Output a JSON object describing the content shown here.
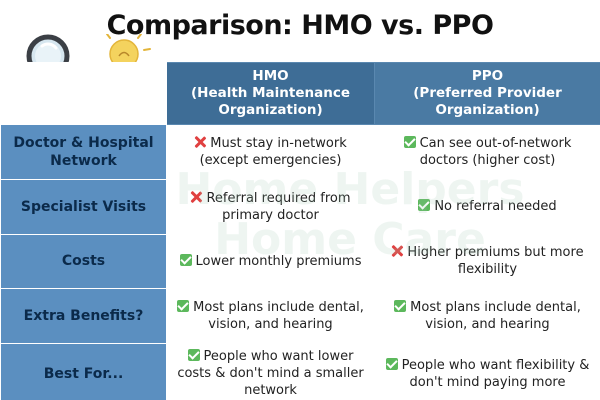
{
  "title": "Comparison: HMO vs. PPO",
  "icons": {
    "left": "magnifying-glass-icon",
    "right": "light-bulb-icon"
  },
  "colors": {
    "header_bg": "#3e6d96",
    "row_label_bg": "#5b8fc0",
    "check": "#5cb85c",
    "cross": "#e04040"
  },
  "columns": [
    {
      "lines": [
        "HMO",
        "(Health Maintenance",
        "Organization)"
      ]
    },
    {
      "lines": [
        "PPO",
        "(Preferred Provider",
        "Organization)"
      ]
    }
  ],
  "rows": [
    {
      "label_lines": [
        "Doctor & Hospital",
        "Network"
      ],
      "hmo": {
        "mark": "cross",
        "lines": [
          "Must stay in-network",
          "(except emergencies)"
        ]
      },
      "ppo": {
        "mark": "check",
        "lines": [
          "Can see out-of-network",
          "doctors (higher cost)"
        ]
      }
    },
    {
      "label_lines": [
        "Specialist Visits"
      ],
      "hmo": {
        "mark": "cross",
        "lines": [
          "Referral required from",
          "primary doctor"
        ]
      },
      "ppo": {
        "mark": "check",
        "lines": [
          "No referral needed"
        ]
      }
    },
    {
      "label_lines": [
        "Costs"
      ],
      "hmo": {
        "mark": "check",
        "lines": [
          "Lower monthly premiums"
        ]
      },
      "ppo": {
        "mark": "cross",
        "lines": [
          "Higher premiums but more",
          "flexibility"
        ]
      }
    },
    {
      "label_lines": [
        "Extra Benefits?"
      ],
      "hmo": {
        "mark": "check",
        "lines": [
          "Most plans include dental,",
          "vision, and hearing"
        ]
      },
      "ppo": {
        "mark": "check",
        "lines": [
          "Most plans include dental,",
          "vision, and hearing"
        ]
      }
    },
    {
      "label_lines": [
        "Best For..."
      ],
      "hmo": {
        "mark": "check",
        "lines": [
          "People who want lower",
          "costs & don't mind a smaller",
          "network"
        ]
      },
      "ppo": {
        "mark": "check",
        "lines": [
          "People who want flexibility &",
          "don't mind paying more"
        ]
      }
    }
  ],
  "watermark_lines": [
    "Home Helpers",
    "Home Care"
  ]
}
